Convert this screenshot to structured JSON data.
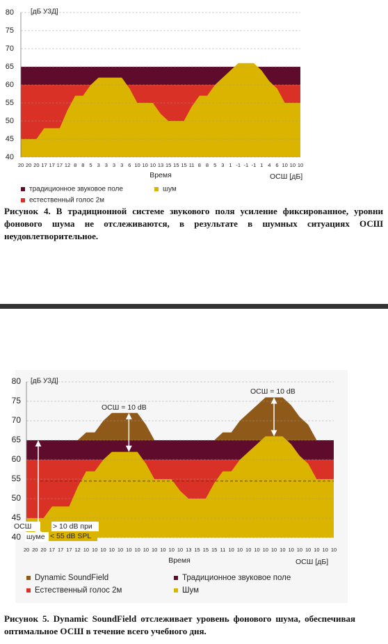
{
  "chart_data": [
    {
      "type": "area",
      "ylabel": "[дБ УЗД]",
      "xlabel": "Время",
      "x2label": "ОСШ [дБ]",
      "caption": "Рисунок 4. В традиционной системе звукового поля усиление фиксированное, уровни фонового шума не отслеживаются, в результате в шумных ситуациях ОСШ неудовлетворительное.",
      "categories": [
        "20",
        "20",
        "20",
        "17",
        "17",
        "17",
        "12",
        "8",
        "8",
        "5",
        "3",
        "3",
        "3",
        "3",
        "6",
        "10",
        "10",
        "10",
        "13",
        "15",
        "15",
        "15",
        "11",
        "8",
        "8",
        "5",
        "3",
        "1",
        "-1",
        "-1",
        "-1",
        "1",
        "4",
        "6",
        "10",
        "10",
        "10"
      ],
      "series": [
        {
          "name": "традиционное звуковое поле",
          "color": "#5e0b2c",
          "values": [
            65,
            65,
            65,
            65,
            65,
            65,
            65,
            65,
            65,
            65,
            65,
            65,
            65,
            65,
            65,
            65,
            65,
            65,
            65,
            65,
            65,
            65,
            65,
            65,
            65,
            65,
            65,
            65,
            65,
            65,
            65,
            65,
            65,
            65,
            65,
            65,
            65
          ]
        },
        {
          "name": "естественный голос 2м",
          "color": "#da3127",
          "values": [
            60,
            60,
            60,
            60,
            60,
            60,
            60,
            60,
            60,
            60,
            60,
            60,
            60,
            60,
            60,
            60,
            60,
            60,
            60,
            60,
            60,
            60,
            60,
            60,
            60,
            60,
            60,
            60,
            60,
            60,
            60,
            60,
            60,
            60,
            60,
            60,
            60
          ]
        },
        {
          "name": "шум",
          "color": "#dbb400",
          "values": [
            45,
            45,
            45,
            48,
            48,
            48,
            53,
            57,
            57,
            60,
            62,
            62,
            62,
            62,
            59,
            55,
            55,
            55,
            52,
            50,
            50,
            50,
            54,
            57,
            57,
            60,
            62,
            64,
            66,
            66,
            66,
            64,
            61,
            59,
            55,
            55,
            55
          ]
        }
      ],
      "ylim": [
        40,
        80
      ],
      "yticks": [
        40,
        45,
        50,
        55,
        60,
        65,
        70,
        75,
        80
      ],
      "grid": true
    },
    {
      "type": "area",
      "ylabel": "[дБ УЗД]",
      "xlabel": "Время",
      "x2label": "ОСШ [дБ]",
      "caption": "Рисунок 5. Dynamic SoundField  отслеживает уровень фонового шума, обеспечивая оптимальное ОСШ в течение всего учебного дня.",
      "categories": [
        "20",
        "20",
        "20",
        "17",
        "17",
        "17",
        "12",
        "10",
        "10",
        "10",
        "10",
        "10",
        "10",
        "10",
        "10",
        "10",
        "10",
        "10",
        "10",
        "13",
        "15",
        "15",
        "15",
        "11",
        "10",
        "10",
        "10",
        "10",
        "10",
        "10",
        "10",
        "10",
        "10",
        "10",
        "10",
        "10",
        "10"
      ],
      "series": [
        {
          "name": "Dynamic SoundField",
          "color": "#8f5a19",
          "values": [
            65,
            65,
            65,
            65,
            65,
            65,
            65,
            67,
            67,
            70,
            72,
            72,
            72,
            72,
            69,
            65,
            65,
            65,
            65,
            65,
            65,
            65,
            65,
            67,
            67,
            70,
            72,
            74,
            76,
            76,
            76,
            74,
            71,
            69,
            65,
            65,
            65
          ]
        },
        {
          "name": "Традиционное звуковое поле",
          "color": "#5e0b2c",
          "values": [
            65,
            65,
            65,
            65,
            65,
            65,
            65,
            65,
            65,
            65,
            65,
            65,
            65,
            65,
            65,
            65,
            65,
            65,
            65,
            65,
            65,
            65,
            65,
            65,
            65,
            65,
            65,
            65,
            65,
            65,
            65,
            65,
            65,
            65,
            65,
            65,
            65
          ]
        },
        {
          "name": "Естественный голос 2м",
          "color": "#da3127",
          "values": [
            60,
            60,
            60,
            60,
            60,
            60,
            60,
            60,
            60,
            60,
            60,
            60,
            60,
            60,
            60,
            60,
            60,
            60,
            60,
            60,
            60,
            60,
            60,
            60,
            60,
            60,
            60,
            60,
            60,
            60,
            60,
            60,
            60,
            60,
            60,
            60,
            60
          ]
        },
        {
          "name": "Шум",
          "color": "#dbb400",
          "values": [
            45,
            45,
            45,
            48,
            48,
            48,
            53,
            57,
            57,
            60,
            62,
            62,
            62,
            62,
            59,
            55,
            55,
            55,
            52,
            50,
            50,
            50,
            54,
            57,
            57,
            60,
            62,
            64,
            66,
            66,
            66,
            64,
            61,
            59,
            55,
            55,
            55
          ]
        }
      ],
      "reference_line": 54.5,
      "annotations": [
        "ОСШ = 10 dB",
        "ОСШ = 10 dB",
        "ОСШ",
        "> 10 dB при",
        "шуме",
        "< 55 dB SPL"
      ],
      "ylim": [
        40,
        80
      ],
      "yticks": [
        40,
        45,
        50,
        55,
        60,
        65,
        70,
        75,
        80
      ],
      "grid": true
    }
  ]
}
